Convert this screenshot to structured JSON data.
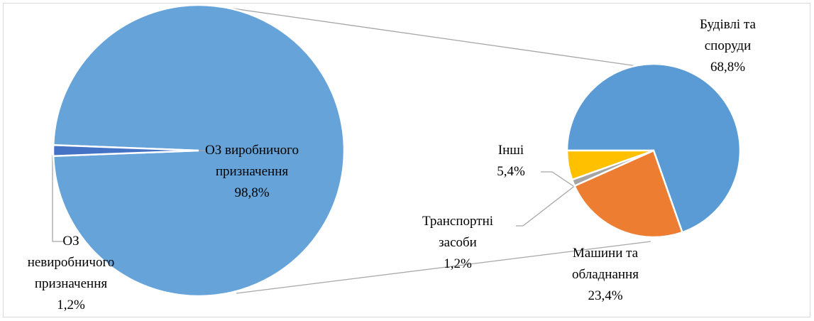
{
  "chart_data": [
    {
      "type": "pie",
      "categories": [
        "ОЗ виробничого призначення",
        "ОЗ невиробничого призначення"
      ],
      "values": [
        98.8,
        1.2
      ],
      "value_labels": [
        "98,8%",
        "1,2%"
      ],
      "colors": [
        "#65a3d9",
        "#4472c4"
      ]
    },
    {
      "type": "pie",
      "categories": [
        "Будівлі та споруди",
        "Машини та обладнання",
        "Транспортні засоби",
        "Інші"
      ],
      "values": [
        68.8,
        23.4,
        1.2,
        5.4
      ],
      "value_labels": [
        "68,8%",
        "23,4%",
        "1,2%",
        "5,4%"
      ],
      "colors": [
        "#5b9bd5",
        "#ed7d31",
        "#a5a5a5",
        "#ffc000"
      ]
    }
  ]
}
